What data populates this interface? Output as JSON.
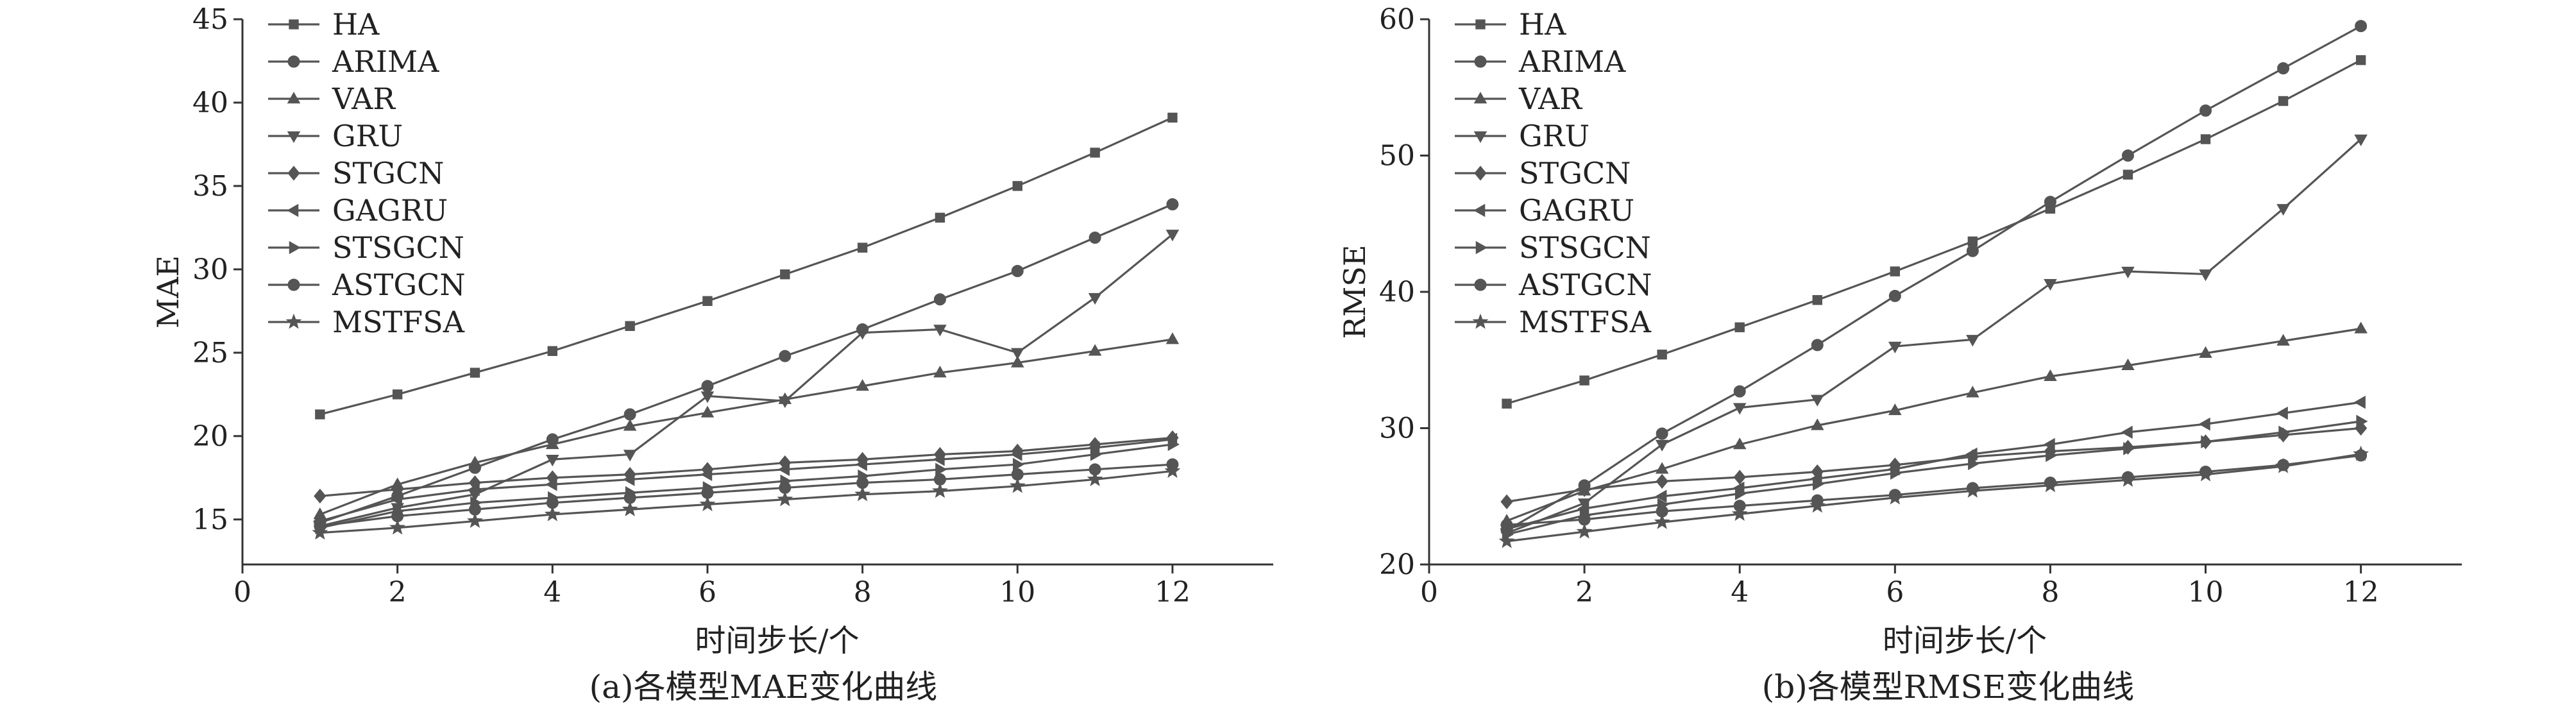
{
  "chart_data": [
    {
      "type": "line",
      "title": "",
      "xlabel": "时间步长/个",
      "ylabel": "MAE",
      "caption": "(a)各模型MAE变化曲线",
      "xlim": [
        0,
        13.3
      ],
      "ylim": [
        12.3,
        45
      ],
      "xticks": [
        0,
        2,
        4,
        6,
        8,
        10,
        12
      ],
      "yticks": [
        15,
        20,
        25,
        30,
        35,
        40,
        45
      ],
      "grid": false,
      "legend_position": "top-left",
      "x": [
        1,
        2,
        3,
        4,
        5,
        6,
        7,
        8,
        9,
        10,
        11,
        12
      ],
      "series": [
        {
          "name": "HA",
          "marker": "square",
          "values": [
            21.3,
            22.5,
            23.8,
            25.1,
            26.6,
            28.1,
            29.7,
            31.3,
            33.1,
            35.0,
            37.0,
            39.1
          ]
        },
        {
          "name": "ARIMA",
          "marker": "circle",
          "values": [
            14.8,
            16.4,
            18.1,
            19.8,
            21.3,
            23.0,
            24.8,
            26.4,
            28.2,
            29.9,
            31.9,
            33.9
          ]
        },
        {
          "name": "VAR",
          "marker": "triangle-up",
          "values": [
            15.3,
            17.1,
            18.4,
            19.5,
            20.6,
            21.4,
            22.2,
            23.0,
            23.8,
            24.4,
            25.1,
            25.8
          ]
        },
        {
          "name": "GRU",
          "marker": "triangle-down",
          "values": [
            14.6,
            15.7,
            16.5,
            18.6,
            18.9,
            22.4,
            22.1,
            26.2,
            26.4,
            25.0,
            28.3,
            32.1
          ]
        },
        {
          "name": "STGCN",
          "marker": "diamond",
          "values": [
            16.4,
            16.8,
            17.2,
            17.5,
            17.7,
            18.0,
            18.4,
            18.6,
            18.9,
            19.1,
            19.5,
            19.9
          ]
        },
        {
          "name": "GAGRU",
          "marker": "triangle-left",
          "values": [
            14.9,
            16.2,
            16.8,
            17.1,
            17.4,
            17.7,
            18.0,
            18.3,
            18.6,
            18.9,
            19.3,
            19.8
          ]
        },
        {
          "name": "STSGCN",
          "marker": "triangle-right",
          "values": [
            14.5,
            15.5,
            16.0,
            16.3,
            16.6,
            16.9,
            17.3,
            17.6,
            18.0,
            18.3,
            18.9,
            19.5
          ]
        },
        {
          "name": "ASTGCN",
          "marker": "circle",
          "values": [
            14.6,
            15.2,
            15.6,
            16.0,
            16.3,
            16.6,
            16.9,
            17.2,
            17.4,
            17.7,
            18.0,
            18.3
          ]
        },
        {
          "name": "MSTFSA",
          "marker": "star",
          "values": [
            14.2,
            14.5,
            14.9,
            15.3,
            15.6,
            15.9,
            16.2,
            16.5,
            16.7,
            17.0,
            17.4,
            17.9
          ]
        }
      ]
    },
    {
      "type": "line",
      "title": "",
      "xlabel": "时间步长/个",
      "ylabel": "RMSE",
      "caption": "(b)各模型RMSE变化曲线",
      "xlim": [
        0,
        13.3
      ],
      "ylim": [
        20,
        60
      ],
      "xticks": [
        0,
        2,
        4,
        6,
        8,
        10,
        12
      ],
      "yticks": [
        20,
        30,
        40,
        50,
        60
      ],
      "grid": false,
      "legend_position": "top-left",
      "x": [
        1,
        2,
        3,
        4,
        5,
        6,
        7,
        8,
        9,
        10,
        11,
        12
      ],
      "series": [
        {
          "name": "HA",
          "marker": "square",
          "values": [
            31.8,
            33.5,
            35.4,
            37.4,
            39.4,
            41.5,
            43.7,
            46.1,
            48.6,
            51.2,
            54.0,
            57.0
          ]
        },
        {
          "name": "ARIMA",
          "marker": "circle",
          "values": [
            22.5,
            25.8,
            29.6,
            32.7,
            36.1,
            39.7,
            43.0,
            46.6,
            50.0,
            53.3,
            56.4,
            59.5
          ]
        },
        {
          "name": "VAR",
          "marker": "triangle-up",
          "values": [
            23.2,
            25.4,
            27.0,
            28.8,
            30.2,
            31.3,
            32.6,
            33.8,
            34.6,
            35.5,
            36.4,
            37.3
          ]
        },
        {
          "name": "GRU",
          "marker": "triangle-down",
          "values": [
            22.3,
            24.5,
            28.8,
            31.5,
            32.1,
            36.0,
            36.5,
            40.6,
            41.5,
            41.3,
            46.1,
            51.2
          ]
        },
        {
          "name": "STGCN",
          "marker": "diamond",
          "values": [
            24.6,
            25.5,
            26.1,
            26.4,
            26.8,
            27.3,
            27.9,
            28.3,
            28.6,
            29.0,
            29.5,
            30.0
          ]
        },
        {
          "name": "GAGRU",
          "marker": "triangle-left",
          "values": [
            22.6,
            24.1,
            25.0,
            25.6,
            26.3,
            27.0,
            28.1,
            28.8,
            29.7,
            30.3,
            31.1,
            31.9
          ]
        },
        {
          "name": "STSGCN",
          "marker": "triangle-right",
          "values": [
            22.2,
            23.6,
            24.4,
            25.2,
            25.9,
            26.7,
            27.4,
            28.0,
            28.5,
            29.0,
            29.7,
            30.5
          ]
        },
        {
          "name": "ASTGCN",
          "marker": "circle",
          "values": [
            22.9,
            23.3,
            23.9,
            24.3,
            24.7,
            25.1,
            25.6,
            26.0,
            26.4,
            26.8,
            27.3,
            28.0
          ]
        },
        {
          "name": "MSTFSA",
          "marker": "star",
          "values": [
            21.7,
            22.4,
            23.1,
            23.7,
            24.3,
            24.9,
            25.4,
            25.8,
            26.2,
            26.6,
            27.2,
            28.1
          ]
        }
      ]
    }
  ]
}
